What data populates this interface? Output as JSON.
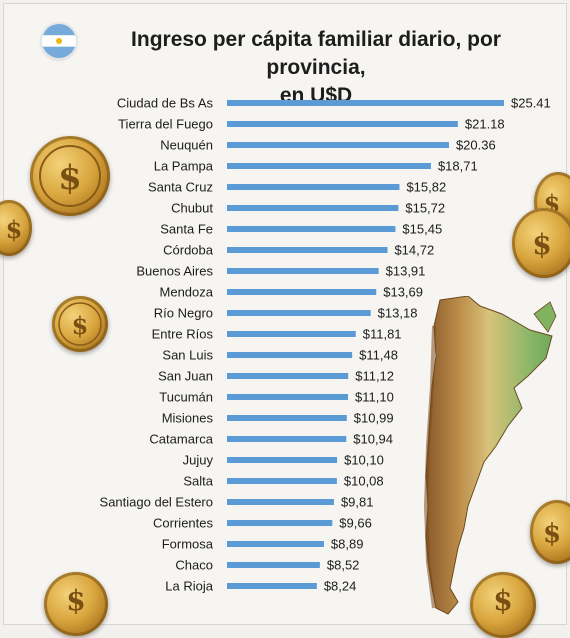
{
  "title_line1": "Ingreso per cápita familiar diario, por provincia,",
  "title_line2": "en U$D",
  "colors": {
    "bar": "#5b9bd5",
    "text": "#1d1d1d",
    "background": "#f6f5f2"
  },
  "decorations": [
    "argentina-flag-icon",
    "dollar-coin-icon",
    "argentina-map"
  ],
  "chart_data": {
    "type": "bar",
    "orientation": "horizontal",
    "categories": [
      "Ciudad de Bs As",
      "Tierra del Fuego",
      "Neuquén",
      "La Pampa",
      "Santa Cruz",
      "Chubut",
      "Santa Fe",
      "Córdoba",
      "Buenos Aires",
      "Mendoza",
      "Río Negro",
      "Entre Ríos",
      "San Luis",
      "San Juan",
      "Tucumán",
      "Misiones",
      "Catamarca",
      "Jujuy",
      "Salta",
      "Santiago del Estero",
      "Corrientes",
      "Formosa",
      "Chaco",
      "La Rioja"
    ],
    "values": [
      25.41,
      21.18,
      20.36,
      18.71,
      15.82,
      15.72,
      15.45,
      14.72,
      13.91,
      13.69,
      13.18,
      11.81,
      11.48,
      11.12,
      11.1,
      10.99,
      10.94,
      10.1,
      10.08,
      9.81,
      9.66,
      8.89,
      8.52,
      8.24
    ],
    "labels": [
      "$25.41",
      "$21.18",
      "$20.36",
      "$18,71",
      "$15,82",
      "$15,72",
      "$15,45",
      "$14,72",
      "$13,91",
      "$13,69",
      "$13,18",
      "$11,81",
      "$11,48",
      "$11,12",
      "$11,10",
      "$10,99",
      "$10,94",
      "$10,10",
      "$10,08",
      "$9,81",
      "$9,66",
      "$8,89",
      "$8,52",
      "$8,24"
    ],
    "xlim": [
      0,
      25.41
    ],
    "grid": false,
    "legend": "none"
  }
}
